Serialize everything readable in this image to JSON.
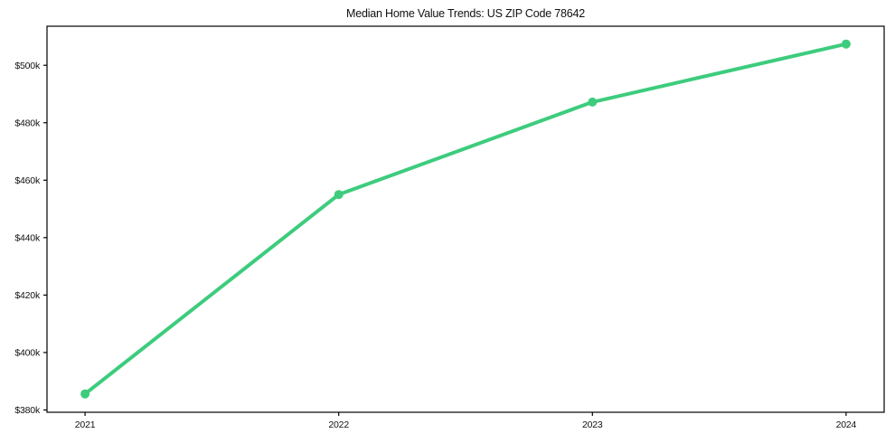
{
  "page": {
    "background_color": "#ffffff"
  },
  "chart_data": {
    "type": "line",
    "title": "Median Home Value Trends: US ZIP Code 78642",
    "xlabel": "",
    "ylabel": "",
    "x": [
      2021,
      2022,
      2023,
      2024
    ],
    "series": [
      {
        "name": "median-home-value",
        "values": [
          385600,
          455000,
          487200,
          507400
        ],
        "color": "#3dcc7d",
        "line_width": 4,
        "marker": "circle",
        "marker_radius": 5
      }
    ],
    "x_ticks": [
      {
        "value": 2021,
        "label": "2021"
      },
      {
        "value": 2022,
        "label": "2022"
      },
      {
        "value": 2023,
        "label": "2023"
      },
      {
        "value": 2024,
        "label": "2024"
      }
    ],
    "y_ticks": [
      {
        "value": 380000,
        "label": "$380k"
      },
      {
        "value": 400000,
        "label": "$400k"
      },
      {
        "value": 420000,
        "label": "$420k"
      },
      {
        "value": 440000,
        "label": "$440k"
      },
      {
        "value": 460000,
        "label": "$460k"
      },
      {
        "value": 480000,
        "label": "$480k"
      },
      {
        "value": 500000,
        "label": "$500k"
      }
    ],
    "xlim": [
      2020.85,
      2024.15
    ],
    "ylim": [
      379200,
      513600
    ],
    "grid": false,
    "legend": "none",
    "axis_color": "#000000"
  }
}
